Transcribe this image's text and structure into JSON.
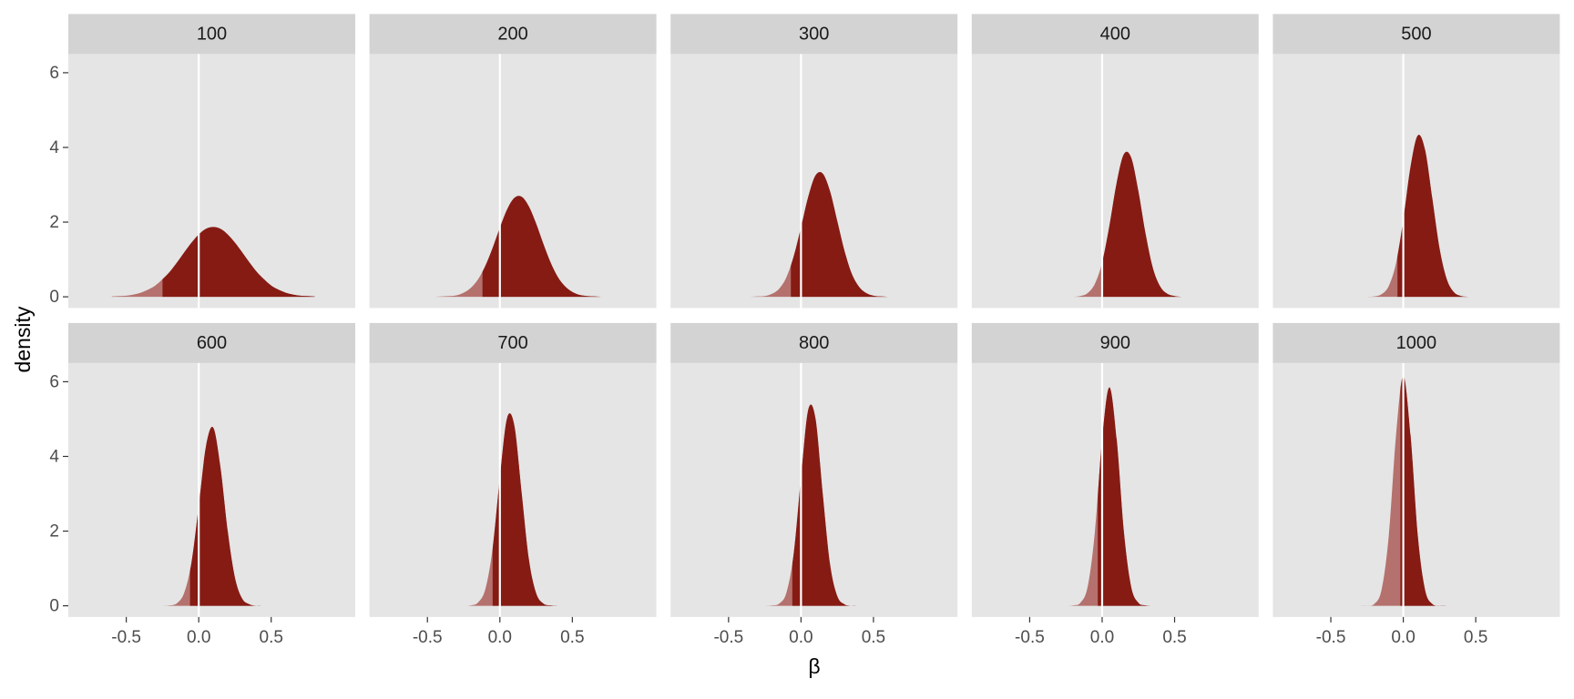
{
  "chart_data": {
    "type": "density",
    "xlabel": "β",
    "ylabel": "density",
    "xlim": [
      -0.9,
      1.08
    ],
    "ylim": [
      -0.3,
      6.5
    ],
    "xticks": [
      -0.5,
      {
        "value": 0,
        "label": "0.0"
      },
      0.5
    ],
    "yticks": [
      0,
      2,
      4,
      6
    ],
    "grid": false,
    "reference_line": 0,
    "x": [
      -0.6,
      -0.55,
      -0.5,
      -0.45,
      -0.4,
      -0.35,
      -0.3,
      -0.25,
      -0.2,
      -0.15,
      -0.1,
      -0.05,
      0,
      0.05,
      0.1,
      0.15,
      0.2,
      0.25,
      0.3,
      0.35,
      0.4,
      0.45,
      0.5,
      0.55,
      0.6,
      0.65,
      0.7,
      0.75,
      0.8
    ],
    "series": [
      {
        "name": "100",
        "color": "#861b14",
        "light_color": "#b5716d",
        "cutoff": -0.25,
        "values": [
          0.01,
          0.02,
          0.03,
          0.06,
          0.11,
          0.19,
          0.3,
          0.47,
          0.67,
          0.92,
          1.19,
          1.45,
          1.67,
          1.82,
          1.87,
          1.82,
          1.67,
          1.45,
          1.19,
          0.92,
          0.67,
          0.47,
          0.3,
          0.19,
          0.11,
          0.06,
          0.03,
          0.02,
          0.01
        ]
      },
      {
        "name": "200",
        "color": "#861b14",
        "light_color": "#b5716d",
        "cutoff": -0.12,
        "values": [
          0,
          0,
          0,
          0,
          0.01,
          0.02,
          0.04,
          0.11,
          0.24,
          0.47,
          0.83,
          1.31,
          1.85,
          2.34,
          2.65,
          2.68,
          2.42,
          1.96,
          1.42,
          0.92,
          0.53,
          0.28,
          0.13,
          0.05,
          0.02,
          0.01,
          0,
          0,
          0
        ]
      },
      {
        "name": "300",
        "color": "#861b14",
        "light_color": "#b5716d",
        "cutoff": -0.07,
        "values": [
          0,
          0,
          0,
          0,
          0,
          0,
          0.01,
          0.02,
          0.08,
          0.22,
          0.53,
          1.09,
          1.86,
          2.68,
          3.25,
          3.3,
          2.83,
          2.03,
          1.23,
          0.62,
          0.27,
          0.1,
          0.03,
          0.01,
          0,
          0,
          0,
          0,
          0
        ]
      },
      {
        "name": "400",
        "color": "#861b14",
        "light_color": "#b5716d",
        "cutoff": 0,
        "values": [
          0,
          0,
          0,
          0,
          0,
          0,
          0,
          0,
          0,
          0.02,
          0.1,
          0.35,
          0.92,
          1.9,
          3.05,
          3.82,
          3.73,
          2.83,
          1.68,
          0.77,
          0.28,
          0.08,
          0.02,
          0,
          0,
          0,
          0,
          0,
          0
        ]
      },
      {
        "name": "500",
        "color": "#861b14",
        "light_color": "#b5716d",
        "cutoff": -0.04,
        "values": [
          0,
          0,
          0,
          0,
          0,
          0,
          0,
          0,
          0.01,
          0.07,
          0.29,
          0.9,
          2.06,
          3.48,
          4.32,
          3.94,
          2.64,
          1.3,
          0.47,
          0.12,
          0.02,
          0,
          0,
          0,
          0,
          0,
          0,
          0,
          0
        ]
      },
      {
        "name": "600",
        "color": "#861b14",
        "light_color": "#b5716d",
        "cutoff": -0.06,
        "values": [
          0,
          0,
          0,
          0,
          0,
          0,
          0,
          0,
          0.01,
          0.07,
          0.35,
          1.16,
          2.67,
          4.27,
          4.77,
          3.7,
          2.0,
          0.75,
          0.19,
          0.04,
          0,
          0,
          0,
          0,
          0,
          0,
          0,
          0,
          0
        ]
      },
      {
        "name": "700",
        "color": "#861b14",
        "light_color": "#b5716d",
        "cutoff": -0.05,
        "values": [
          0,
          0,
          0,
          0,
          0,
          0,
          0,
          0,
          0.01,
          0.09,
          0.45,
          1.54,
          3.44,
          5.03,
          4.82,
          3.03,
          1.25,
          0.34,
          0.06,
          0.01,
          0,
          0,
          0,
          0,
          0,
          0,
          0,
          0,
          0
        ]
      },
      {
        "name": "800",
        "color": "#861b14",
        "light_color": "#b5716d",
        "cutoff": -0.06,
        "values": [
          0,
          0,
          0,
          0,
          0,
          0,
          0,
          0,
          0.01,
          0.06,
          0.36,
          1.41,
          3.44,
          5.25,
          5.01,
          2.99,
          1.12,
          0.26,
          0.04,
          0,
          0,
          0,
          0,
          0,
          0,
          0,
          0,
          0,
          0
        ]
      },
      {
        "name": "900",
        "color": "#861b14",
        "light_color": "#b5716d",
        "cutoff": -0.03,
        "values": [
          0,
          0,
          0,
          0,
          0,
          0,
          0,
          0,
          0.01,
          0.08,
          0.51,
          1.98,
          4.47,
          5.85,
          4.47,
          1.98,
          0.51,
          0.08,
          0.01,
          0,
          0,
          0,
          0,
          0,
          0,
          0,
          0,
          0,
          0
        ]
      },
      {
        "name": "1000",
        "color": "#861b14",
        "light_color": "#b5716d",
        "cutoff": -0.02,
        "values": [
          0,
          0,
          0,
          0,
          0,
          0,
          0,
          0,
          0.05,
          0.43,
          1.88,
          4.57,
          6.15,
          4.57,
          1.88,
          0.43,
          0.05,
          0,
          0,
          0,
          0,
          0,
          0,
          0,
          0,
          0,
          0,
          0,
          0
        ]
      }
    ]
  }
}
